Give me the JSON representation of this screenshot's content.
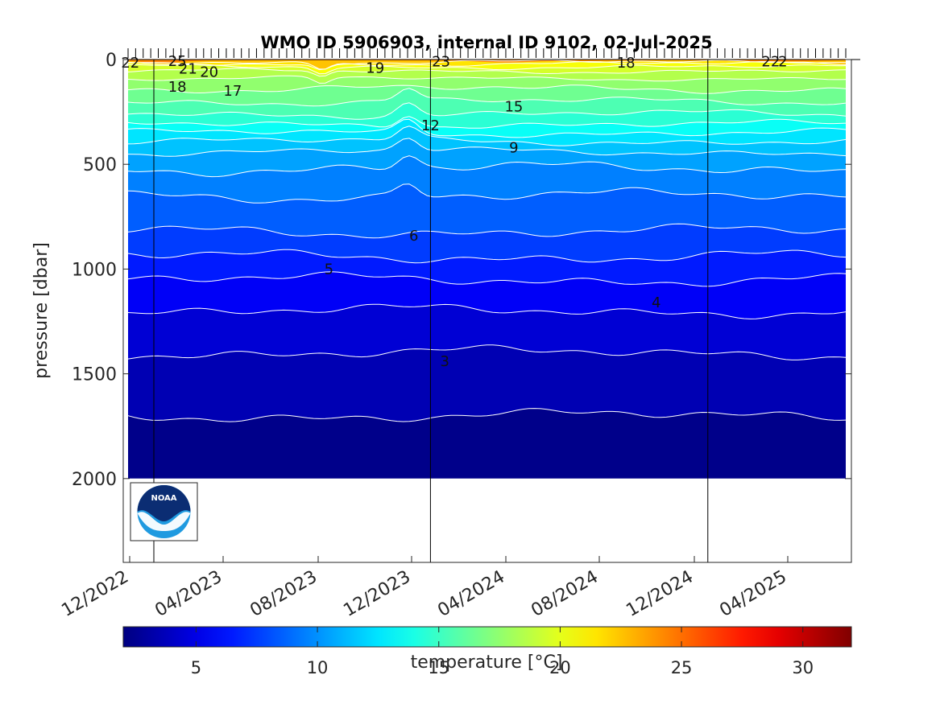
{
  "chart_data": {
    "type": "heatmap",
    "title": "WMO ID 5906903, internal ID 9102, 02-Jul-2025",
    "ylabel": "pressure [dbar]",
    "xlabel": "",
    "ylim": [
      0,
      2400
    ],
    "y_reversed": true,
    "y_ticks": [
      0,
      500,
      1000,
      1500,
      2000
    ],
    "x_ticks": [
      "12/2022",
      "04/2023",
      "08/2023",
      "12/2023",
      "04/2024",
      "08/2024",
      "12/2024",
      "04/2025"
    ],
    "x_range": [
      "2022-11-28",
      "2025-07-02"
    ],
    "year_lines": [
      "2023-01-01",
      "2024-01-01",
      "2025-01-01"
    ],
    "max_pressure": 2000,
    "colorbar": {
      "label": "temperature [°C]",
      "range": [
        2,
        32
      ],
      "ticks": [
        5,
        10,
        15,
        20,
        25,
        30
      ],
      "colormap": "jet",
      "placement": "bottom"
    },
    "isotherms": [
      {
        "t": 3,
        "depth": 1700
      },
      {
        "t": 4,
        "depth": 1400
      },
      {
        "t": 5,
        "depth": 1200
      },
      {
        "t": 6,
        "depth": 1050
      },
      {
        "t": 7,
        "depth": 940
      },
      {
        "t": 8,
        "depth": 820
      },
      {
        "t": 9,
        "depth": 650
      },
      {
        "t": 10,
        "depth": 520
      },
      {
        "t": 11,
        "depth": 440
      },
      {
        "t": 12,
        "depth": 390
      },
      {
        "t": 13,
        "depth": 350
      },
      {
        "t": 14,
        "depth": 310
      },
      {
        "t": 15,
        "depth": 260
      },
      {
        "t": 16,
        "depth": 200
      },
      {
        "t": 17,
        "depth": 140
      },
      {
        "t": 18,
        "depth": 90
      },
      {
        "t": 19,
        "depth": 55
      },
      {
        "t": 20,
        "depth": 35
      },
      {
        "t": 21,
        "depth": 20
      },
      {
        "t": 22,
        "depth": 12
      }
    ],
    "contour_labels": [
      {
        "text": "22",
        "date": "2022-12-01",
        "p": 15
      },
      {
        "text": "25",
        "date": "2023-02-01",
        "p": 8
      },
      {
        "text": "21",
        "date": "2023-02-15",
        "p": 45
      },
      {
        "text": "20",
        "date": "2023-03-15",
        "p": 60
      },
      {
        "text": "18",
        "date": "2023-02-01",
        "p": 130
      },
      {
        "text": "17",
        "date": "2023-04-15",
        "p": 150
      },
      {
        "text": "19",
        "date": "2023-10-20",
        "p": 40
      },
      {
        "text": "23",
        "date": "2024-01-15",
        "p": 10
      },
      {
        "text": "15",
        "date": "2024-04-20",
        "p": 225
      },
      {
        "text": "12",
        "date": "2024-01-01",
        "p": 315
      },
      {
        "text": "9",
        "date": "2024-04-20",
        "p": 420
      },
      {
        "text": "18",
        "date": "2024-09-15",
        "p": 15
      },
      {
        "text": "22",
        "date": "2025-03-25",
        "p": 10
      },
      {
        "text": "2",
        "date": "2025-04-10",
        "p": 10
      },
      {
        "text": "6",
        "date": "2023-12-10",
        "p": 840
      },
      {
        "text": "5",
        "date": "2023-08-20",
        "p": 1000
      },
      {
        "text": "4",
        "date": "2024-10-25",
        "p": 1160
      },
      {
        "text": "3",
        "date": "2024-01-20",
        "p": 1440
      }
    ]
  },
  "logo": {
    "text": "NOAA"
  }
}
